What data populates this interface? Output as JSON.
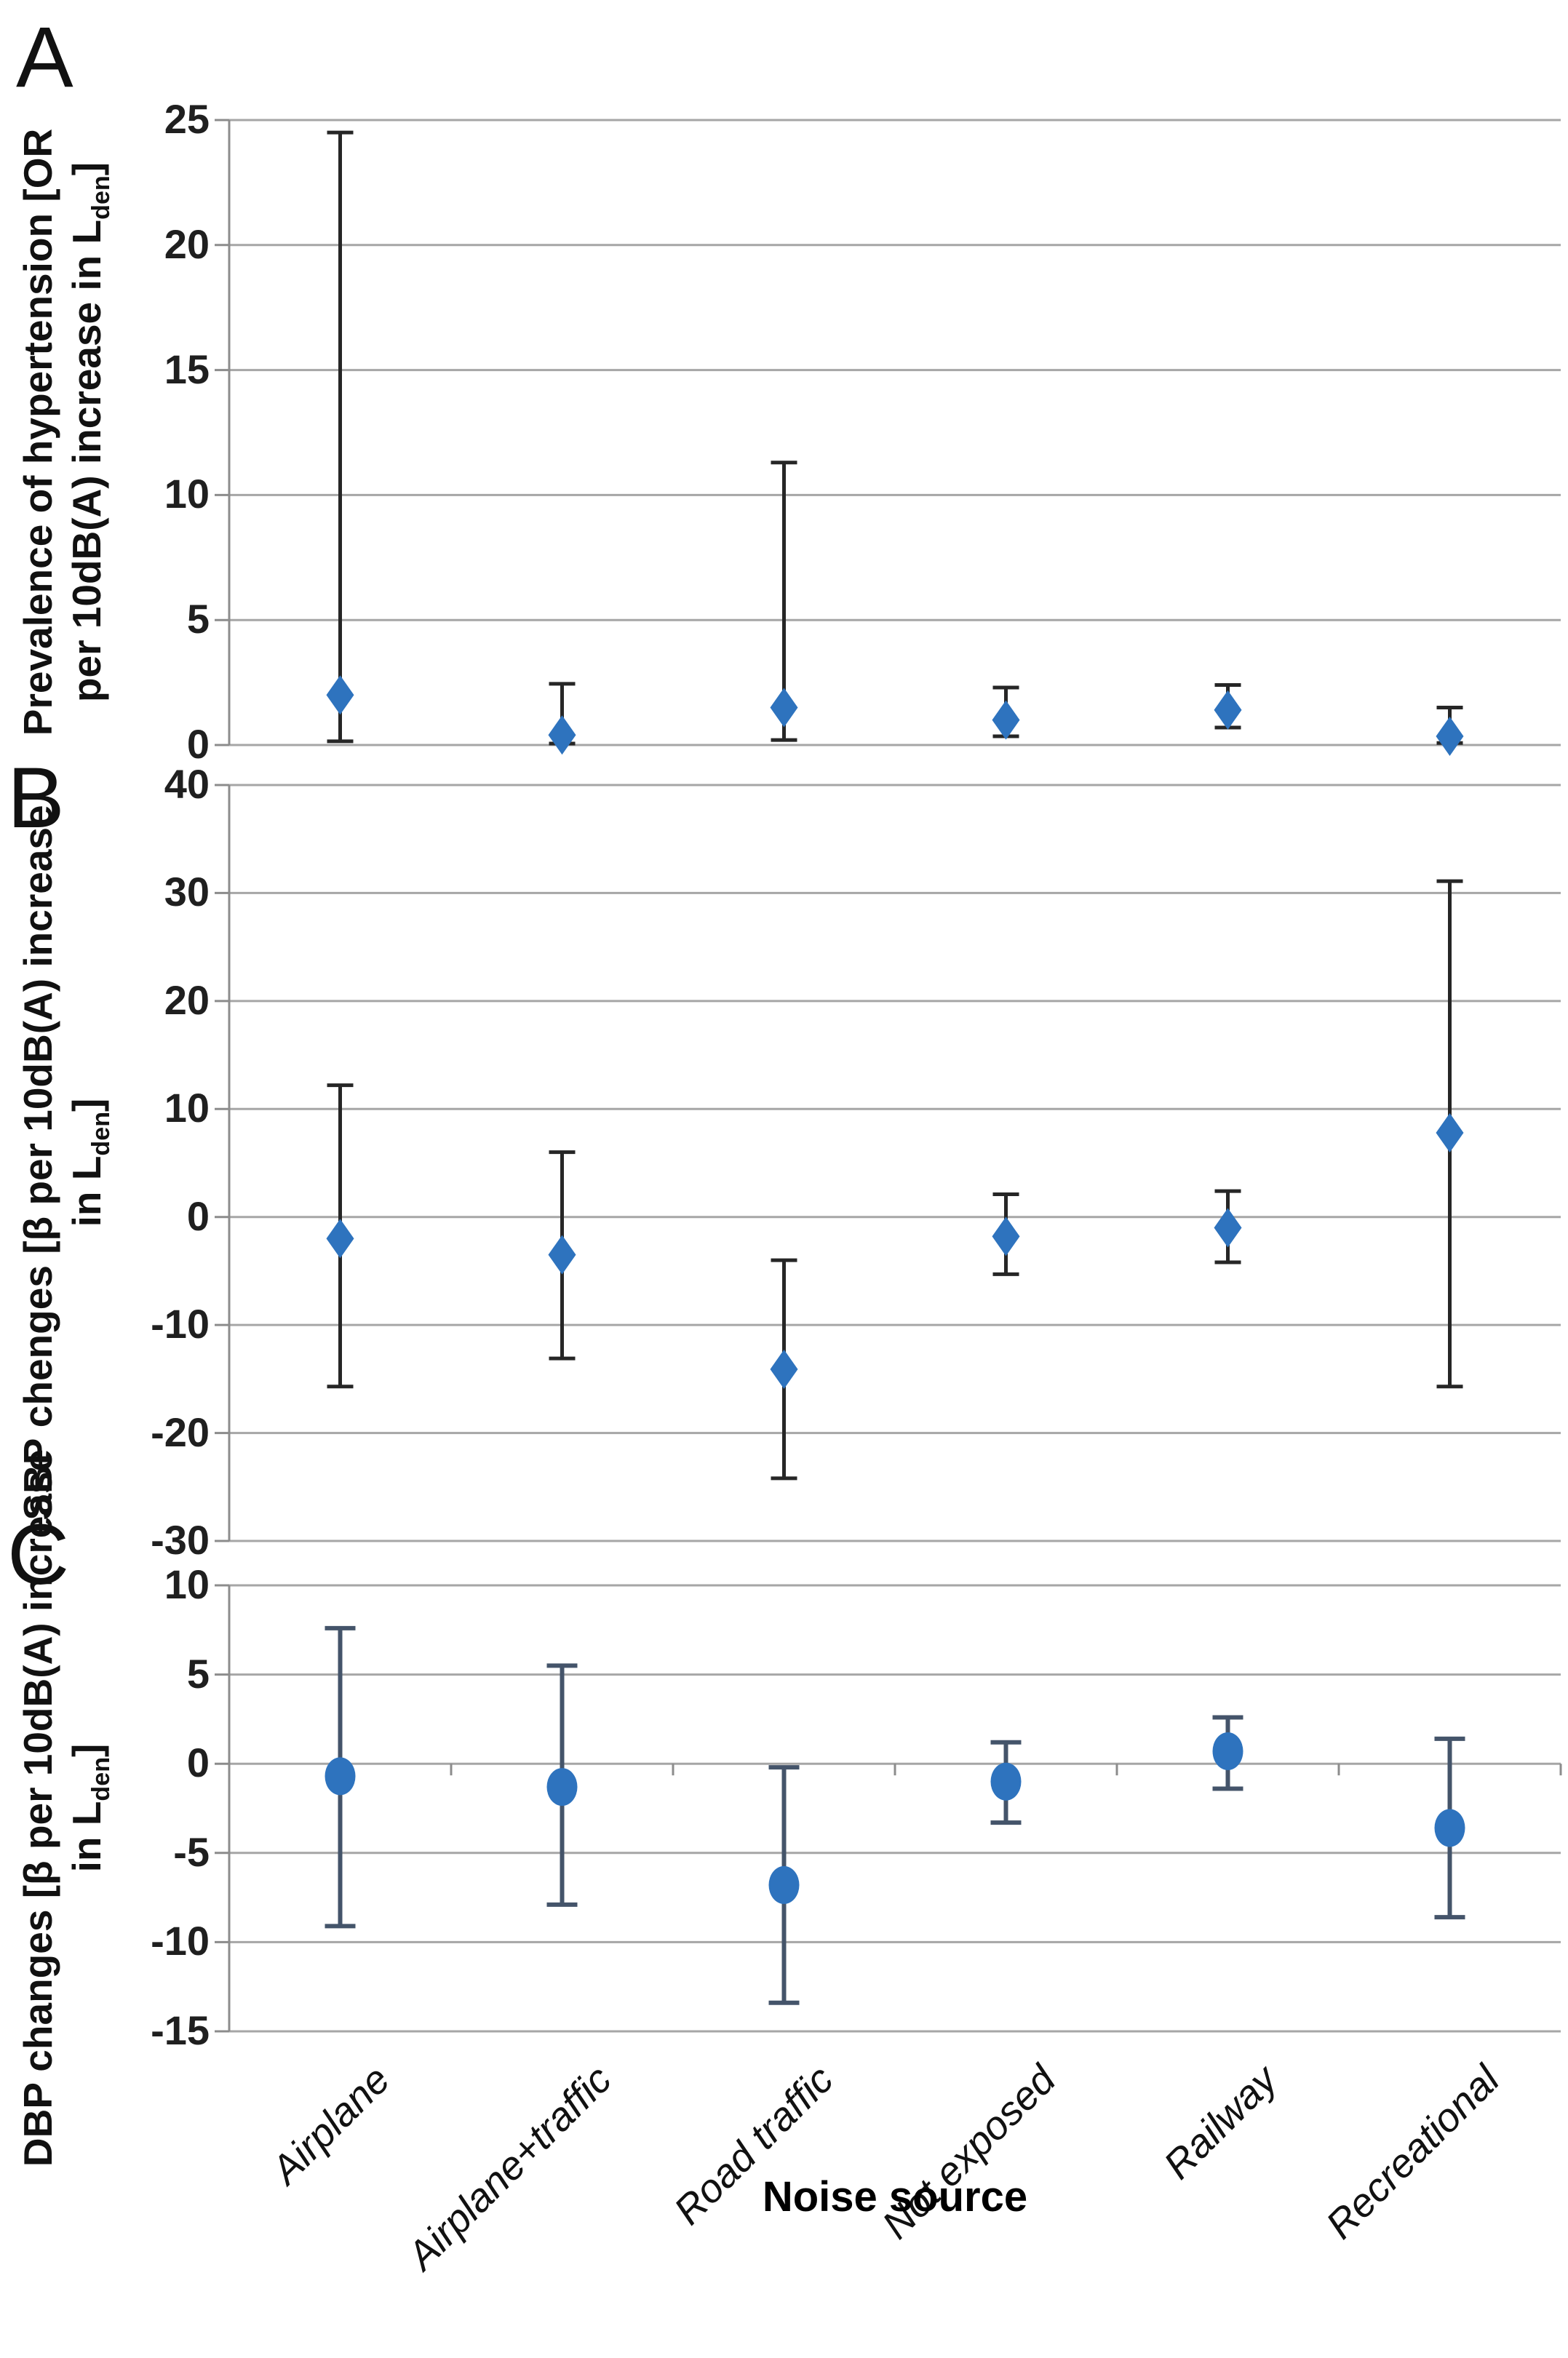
{
  "figure": {
    "xlabel": "Noise source",
    "categories": [
      "Airplane",
      "Airplane+traffic",
      "Road traffic",
      "Not exposed",
      "Railway",
      "Recreational"
    ],
    "colors": {
      "marker_fill": "#2e73be",
      "error_bar_ab": "#262626",
      "error_bar_c": "#44546a",
      "gridline": "#a6a6a6",
      "axis": "#8c8c8c",
      "text": "#1a1a1a"
    }
  },
  "chart_data": [
    {
      "type": "scatter",
      "panel_label": "A",
      "marker": "diamond",
      "title": "Prevalence of hypertension [OR per 10dB(A) increase in Lden]",
      "ylabel_lines": [
        {
          "text": "Prevalence of hypertension [OR"
        },
        {
          "text": "per 10dB(A) increase in L",
          "sub": "den",
          "after": "]"
        }
      ],
      "ylim": [
        0,
        25
      ],
      "yticks": [
        25,
        20,
        15,
        10,
        5,
        0
      ],
      "grid": true,
      "legend": "none",
      "categories": [
        "Airplane",
        "Airplane+traffic",
        "Road traffic",
        "Not exposed",
        "Railway",
        "Recreational"
      ],
      "series": [
        {
          "category": "Airplane",
          "value": 2.0,
          "ci_low": 0.15,
          "ci_high": 24.5
        },
        {
          "category": "Airplane+traffic",
          "value": 0.4,
          "ci_low": 0.06,
          "ci_high": 2.45
        },
        {
          "category": "Road traffic",
          "value": 1.5,
          "ci_low": 0.2,
          "ci_high": 11.3
        },
        {
          "category": "Not exposed",
          "value": 1.0,
          "ci_low": 0.35,
          "ci_high": 2.3
        },
        {
          "category": "Railway",
          "value": 1.4,
          "ci_low": 0.7,
          "ci_high": 2.4
        },
        {
          "category": "Recreational",
          "value": 0.35,
          "ci_low": 0.08,
          "ci_high": 1.5
        }
      ]
    },
    {
      "type": "scatter",
      "panel_label": "B",
      "marker": "diamond",
      "title": "SBP chenges [β per 10dB(A) increase in Lden]",
      "ylabel_lines": [
        {
          "text": "SBP chenges [β per 10dB(A) increase"
        },
        {
          "text": "in L",
          "sub": "den",
          "after": "]"
        }
      ],
      "ylim": [
        -30,
        40
      ],
      "yticks": [
        40,
        30,
        20,
        10,
        0,
        -10,
        -20,
        -30
      ],
      "grid": true,
      "legend": "none",
      "categories": [
        "Airplane",
        "Airplane+traffic",
        "Road traffic",
        "Not exposed",
        "Railway",
        "Recreational"
      ],
      "series": [
        {
          "category": "Airplane",
          "value": -2.0,
          "ci_low": -15.7,
          "ci_high": 12.2
        },
        {
          "category": "Airplane+traffic",
          "value": -3.5,
          "ci_low": -13.1,
          "ci_high": 6.0
        },
        {
          "category": "Road traffic",
          "value": -14.1,
          "ci_low": -24.2,
          "ci_high": -4.0
        },
        {
          "category": "Not exposed",
          "value": -1.8,
          "ci_low": -5.3,
          "ci_high": 2.1
        },
        {
          "category": "Railway",
          "value": -1.0,
          "ci_low": -4.2,
          "ci_high": 2.4
        },
        {
          "category": "Recreational",
          "value": 7.8,
          "ci_low": -15.7,
          "ci_high": 31.1
        }
      ]
    },
    {
      "type": "scatter",
      "panel_label": "C",
      "marker": "circle",
      "title": "DBP changes [β per 10dB(A) increase in Lden]",
      "ylabel_lines": [
        {
          "text": "DBP changes [β per 10dB(A) increase"
        },
        {
          "text": "in L",
          "sub": "den",
          "after": "]"
        }
      ],
      "ylim": [
        -15,
        10
      ],
      "yticks": [
        10,
        5,
        0,
        -5,
        -10,
        -15
      ],
      "grid": true,
      "legend": "none",
      "categories": [
        "Airplane",
        "Airplane+traffic",
        "Road traffic",
        "Not exposed",
        "Railway",
        "Recreational"
      ],
      "series": [
        {
          "category": "Airplane",
          "value": -0.7,
          "ci_low": -9.1,
          "ci_high": 7.6
        },
        {
          "category": "Airplane+traffic",
          "value": -1.3,
          "ci_low": -7.9,
          "ci_high": 5.5
        },
        {
          "category": "Road traffic",
          "value": -6.8,
          "ci_low": -13.4,
          "ci_high": -0.2
        },
        {
          "category": "Not exposed",
          "value": -1.0,
          "ci_low": -3.3,
          "ci_high": 1.2
        },
        {
          "category": "Railway",
          "value": 0.7,
          "ci_low": -1.4,
          "ci_high": 2.6
        },
        {
          "category": "Recreational",
          "value": -3.6,
          "ci_low": -8.6,
          "ci_high": 1.4
        }
      ]
    }
  ]
}
